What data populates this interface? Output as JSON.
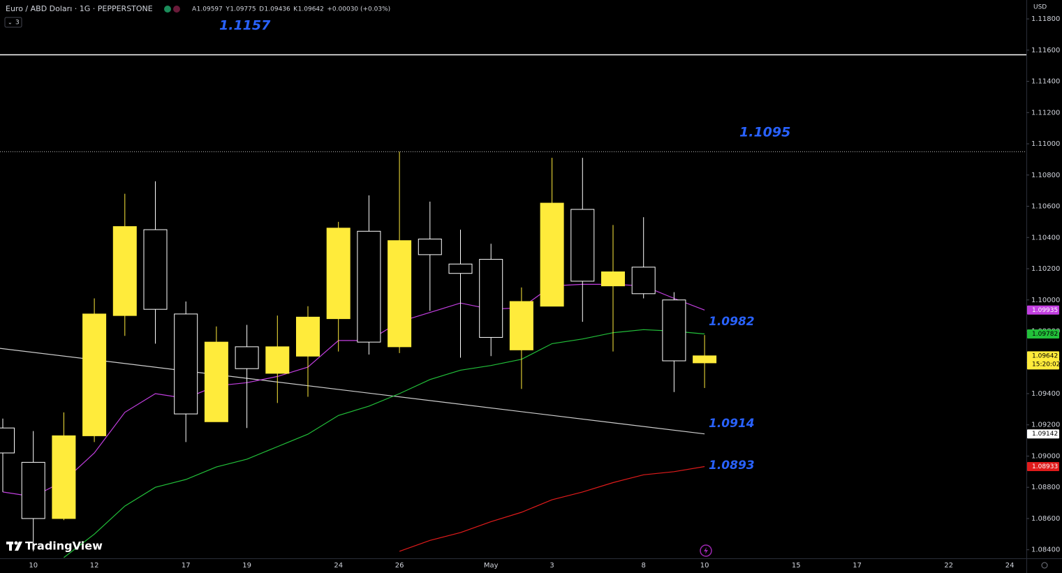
{
  "header": {
    "symbol": "Euro / ABD Doları · 1G · PEPPERSTONE",
    "ohlc_prefixes": [
      "A",
      "Y",
      "D",
      "K"
    ],
    "change": "+0.00030 (+0.03%)",
    "indicator_count": "3"
  },
  "brand": "TradingView",
  "chart_data": {
    "type": "candlestick",
    "currency": "USD",
    "categories": [
      null,
      "10",
      null,
      "12",
      null,
      null,
      "17",
      null,
      "19",
      null,
      null,
      "24",
      null,
      "26",
      null,
      null,
      "May",
      null,
      "3",
      null,
      null,
      "8",
      null,
      "10",
      null,
      null,
      "15",
      null,
      "17",
      null,
      null,
      "22",
      null,
      "24"
    ],
    "open": [
      1.0918,
      1.0896,
      1.086,
      1.0913,
      1.099,
      1.1045,
      1.0991,
      1.0922,
      1.097,
      1.0953,
      1.0964,
      1.0988,
      1.1044,
      1.097,
      1.1039,
      1.1023,
      1.1026,
      1.0968,
      1.0996,
      1.1058,
      1.1009,
      1.1021,
      1.1,
      1.09597,
      null,
      null,
      null,
      null,
      null,
      null,
      null,
      null,
      null,
      null
    ],
    "high": [
      1.0924,
      1.0916,
      1.0928,
      1.1001,
      1.1068,
      1.1076,
      1.0999,
      1.0983,
      1.0984,
      1.099,
      1.0996,
      1.105,
      1.1067,
      1.1095,
      1.1063,
      1.1045,
      1.1036,
      1.1008,
      1.1091,
      1.1091,
      1.1048,
      1.1053,
      1.1005,
      1.09775,
      null,
      null,
      null,
      null,
      null,
      null,
      null,
      null,
      null,
      null
    ],
    "low": [
      1.0877,
      1.0839,
      1.0859,
      1.0909,
      1.0977,
      1.0972,
      1.0909,
      1.0922,
      1.0918,
      1.0934,
      1.0938,
      1.0967,
      1.0965,
      1.0966,
      1.0993,
      1.0963,
      1.0964,
      1.0943,
      1.0996,
      1.0986,
      1.0967,
      1.1001,
      1.0941,
      1.09436,
      null,
      null,
      null,
      null,
      null,
      null,
      null,
      null,
      null,
      null
    ],
    "close": [
      1.0902,
      1.086,
      1.0913,
      1.0991,
      1.1047,
      1.0994,
      1.0927,
      1.0973,
      1.0956,
      1.097,
      1.0989,
      1.1046,
      1.0973,
      1.1038,
      1.1029,
      1.1017,
      1.0976,
      1.0999,
      1.1062,
      1.1012,
      1.1018,
      1.1004,
      1.0961,
      1.09642,
      null,
      null,
      null,
      null,
      null,
      null,
      null,
      null,
      null,
      null
    ],
    "up_color": "#ffeb3b",
    "down_color": "#ffffff",
    "countdown": "15:20:02",
    "series": [
      {
        "color": "#c23fe0",
        "values": [
          1.0877,
          1.0874,
          1.0884,
          1.0902,
          1.0928,
          1.094,
          1.0937,
          1.0945,
          1.0947,
          1.0951,
          1.0957,
          1.0974,
          1.0974,
          1.0986,
          1.0992,
          1.0998,
          1.0994,
          1.0995,
          1.1009,
          1.101,
          1.101,
          1.1009,
          1.1001,
          1.09935,
          null,
          null,
          null,
          null,
          null,
          null,
          null,
          null,
          null,
          null
        ]
      },
      {
        "color": "#22c03a",
        "values": [
          null,
          null,
          1.0835,
          1.085,
          1.0868,
          1.088,
          1.0885,
          1.0893,
          1.0898,
          1.0906,
          1.0914,
          1.0926,
          1.0932,
          1.094,
          1.0949,
          1.0955,
          1.0958,
          1.0962,
          1.0972,
          1.0975,
          1.0979,
          1.0981,
          1.098,
          1.09782,
          null,
          null,
          null,
          null,
          null,
          null,
          null,
          null,
          null,
          null
        ]
      },
      {
        "color": "#e01b1b",
        "values": [
          null,
          null,
          null,
          null,
          null,
          null,
          null,
          null,
          null,
          null,
          null,
          null,
          null,
          1.0839,
          1.0846,
          1.0851,
          1.0858,
          1.0864,
          1.0872,
          1.0877,
          1.0883,
          1.0888,
          1.089,
          1.08933,
          null,
          null,
          null,
          null,
          null,
          null,
          null,
          null,
          null,
          null
        ]
      }
    ],
    "trend_line": {
      "color": "#cfcfcf",
      "start": 1.0969,
      "end": 1.09142
    },
    "levels": [
      {
        "value": 1.1157,
        "style": "solid",
        "color": "#ffffff"
      },
      {
        "value": 1.1095,
        "style": "dotted",
        "color": "#ffffff"
      }
    ],
    "annotations": [
      "1.1157",
      "1.1095",
      "1.0982",
      "1.0914",
      "1.0893"
    ],
    "ylim": [
      1.08345,
      1.11921
    ],
    "yticks": [
      {
        "value": 1.118,
        "label": "1.11800"
      },
      {
        "value": 1.116,
        "label": "1.11600"
      },
      {
        "value": 1.114,
        "label": "1.11400"
      },
      {
        "value": 1.112,
        "label": "1.11200"
      },
      {
        "value": 1.11,
        "label": "1.11000"
      },
      {
        "value": 1.108,
        "label": "1.10800"
      },
      {
        "value": 1.106,
        "label": "1.10600"
      },
      {
        "value": 1.104,
        "label": "1.10400"
      },
      {
        "value": 1.102,
        "label": "1.10200"
      },
      {
        "value": 1.1,
        "label": "1.10000"
      },
      {
        "value": 1.098,
        "label": "1.09800"
      },
      {
        "value": 1.096,
        "label": "1.09600"
      },
      {
        "value": 1.094,
        "label": "1.09400"
      },
      {
        "value": 1.092,
        "label": "1.09200"
      },
      {
        "value": 1.09,
        "label": "1.09000"
      },
      {
        "value": 1.088,
        "label": "1.08800"
      },
      {
        "value": 1.086,
        "label": "1.08600"
      },
      {
        "value": 1.084,
        "label": "1.08400"
      }
    ]
  }
}
